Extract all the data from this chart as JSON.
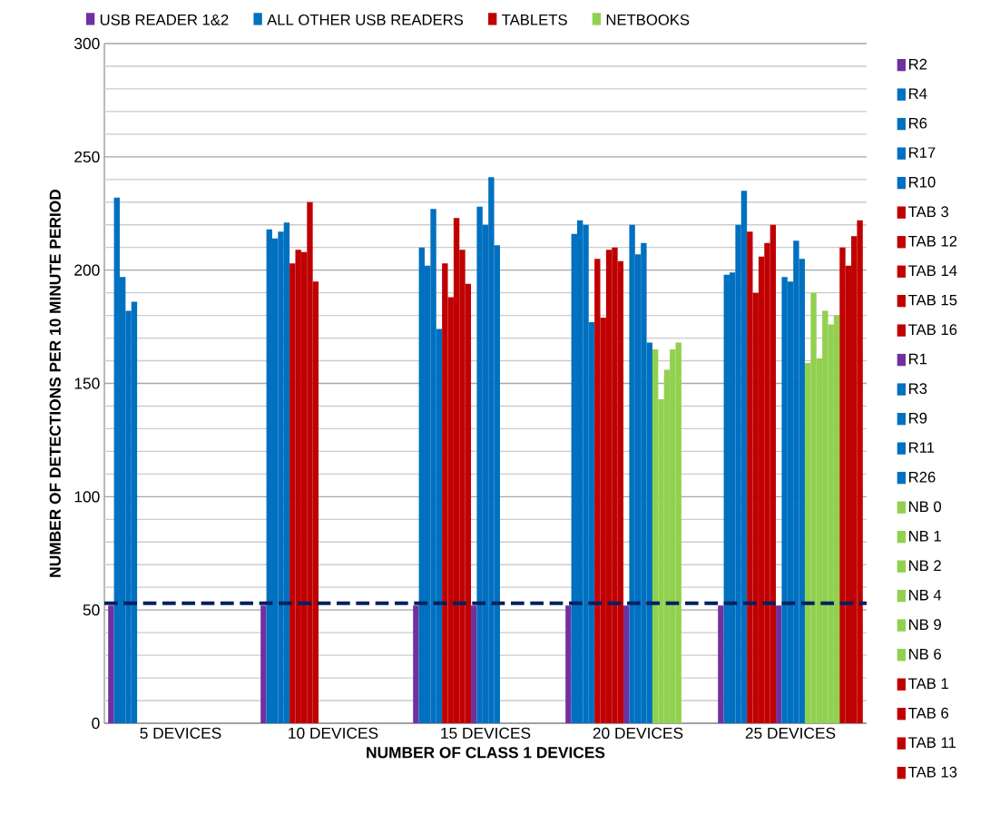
{
  "chart_data": {
    "type": "bar",
    "xlabel": "NUMBER OF CLASS 1 DEVICES",
    "ylabel": "NUMBER OF DETECTIONS PER 10 MINUTE PERIOD",
    "categories": [
      "5 DEVICES",
      "10 DEVICES",
      "15 DEVICES",
      "20 DEVICES",
      "25 DEVICES"
    ],
    "ylim": [
      0,
      300
    ],
    "yticks": [
      0,
      {
        "value": 10,
        "label": null
      },
      {
        "value": 20,
        "label": null
      },
      {
        "value": 30,
        "label": null
      },
      {
        "value": 40,
        "label": null
      },
      50,
      {
        "value": 60,
        "label": null
      },
      {
        "value": 70,
        "label": null
      },
      {
        "value": 80,
        "label": null
      },
      {
        "value": 90,
        "label": null
      },
      100,
      {
        "value": 110,
        "label": null
      },
      {
        "value": 120,
        "label": null
      },
      {
        "value": 130,
        "label": null
      },
      {
        "value": 140,
        "label": null
      },
      150,
      {
        "value": 160,
        "label": null
      },
      {
        "value": 170,
        "label": null
      },
      {
        "value": 180,
        "label": null
      },
      {
        "value": 190,
        "label": null
      },
      200,
      {
        "value": 210,
        "label": null
      },
      {
        "value": 220,
        "label": null
      },
      {
        "value": 230,
        "label": null
      },
      {
        "value": 240,
        "label": null
      },
      250,
      {
        "value": 260,
        "label": null
      },
      {
        "value": 270,
        "label": null
      },
      {
        "value": 280,
        "label": null
      },
      {
        "value": 290,
        "label": null
      },
      300
    ],
    "grid": "y",
    "legend": "right",
    "ref_lines": [
      {
        "axis": "y",
        "value": 53,
        "color": "#002060",
        "line_style": "dashed"
      }
    ],
    "series": [
      {
        "name": "USB READER 1&2",
        "color": "#7030a0",
        "values": [
          null,
          null,
          null,
          null,
          null
        ]
      },
      {
        "name": "ALL OTHER USB READERS",
        "color": "#0070c0",
        "values": [
          null,
          null,
          null,
          null,
          null
        ]
      },
      {
        "name": "TABLETS",
        "color": "#c00000",
        "values": [
          null,
          null,
          null,
          null,
          null
        ]
      },
      {
        "name": "NETBOOKS",
        "color": "#92d050",
        "values": [
          null,
          null,
          null,
          null,
          null
        ]
      },
      {
        "name": "R2",
        "color": "#7030a0",
        "values": [
          52,
          52,
          52,
          52,
          52
        ]
      },
      {
        "name": "R4",
        "color": "#0070c0",
        "values": [
          232,
          218,
          210,
          216,
          198
        ]
      },
      {
        "name": "R6",
        "color": "#0070c0",
        "values": [
          197,
          214,
          202,
          222,
          199
        ]
      },
      {
        "name": "R17",
        "color": "#0070c0",
        "values": [
          182,
          217,
          227,
          220,
          220
        ]
      },
      {
        "name": "R10",
        "color": "#0070c0",
        "values": [
          186,
          221,
          174,
          177,
          235
        ]
      },
      {
        "name": "TAB 3",
        "color": "#c00000",
        "values": [
          null,
          203,
          203,
          205,
          217
        ]
      },
      {
        "name": "TAB 12",
        "color": "#c00000",
        "values": [
          null,
          209,
          188,
          179,
          190
        ]
      },
      {
        "name": "TAB 14",
        "color": "#c00000",
        "values": [
          null,
          208,
          223,
          209,
          206
        ]
      },
      {
        "name": "TAB 15",
        "color": "#c00000",
        "values": [
          null,
          230,
          209,
          210,
          212
        ]
      },
      {
        "name": "TAB 16",
        "color": "#c00000",
        "values": [
          null,
          195,
          194,
          204,
          220
        ]
      },
      {
        "name": "R1",
        "color": "#7030a0",
        "values": [
          null,
          null,
          52,
          52,
          52
        ]
      },
      {
        "name": "R3",
        "color": "#0070c0",
        "values": [
          null,
          null,
          228,
          220,
          197
        ]
      },
      {
        "name": "R9",
        "color": "#0070c0",
        "values": [
          null,
          null,
          220,
          207,
          195
        ]
      },
      {
        "name": "R11",
        "color": "#0070c0",
        "values": [
          null,
          null,
          241,
          212,
          213
        ]
      },
      {
        "name": "R26",
        "color": "#0070c0",
        "values": [
          null,
          null,
          211,
          168,
          205
        ]
      },
      {
        "name": "NB 0",
        "color": "#92d050",
        "values": [
          null,
          null,
          null,
          165,
          159
        ]
      },
      {
        "name": "NB 1",
        "color": "#92d050",
        "values": [
          null,
          null,
          null,
          143,
          190
        ]
      },
      {
        "name": "NB 2",
        "color": "#92d050",
        "values": [
          null,
          null,
          null,
          156,
          161
        ]
      },
      {
        "name": "NB 4",
        "color": "#92d050",
        "values": [
          null,
          null,
          null,
          165,
          182
        ]
      },
      {
        "name": "NB 9",
        "color": "#92d050",
        "values": [
          null,
          null,
          null,
          168,
          176
        ]
      },
      {
        "name": "NB 6",
        "color": "#92d050",
        "values": [
          null,
          null,
          null,
          null,
          180
        ]
      },
      {
        "name": "TAB 1",
        "color": "#c00000",
        "values": [
          null,
          null,
          null,
          null,
          210
        ]
      },
      {
        "name": "TAB 6",
        "color": "#c00000",
        "values": [
          null,
          null,
          null,
          null,
          202
        ]
      },
      {
        "name": "TAB 11",
        "color": "#c00000",
        "values": [
          null,
          null,
          null,
          null,
          215
        ]
      },
      {
        "name": "TAB 13",
        "color": "#c00000",
        "values": [
          null,
          null,
          null,
          null,
          222
        ]
      }
    ]
  }
}
